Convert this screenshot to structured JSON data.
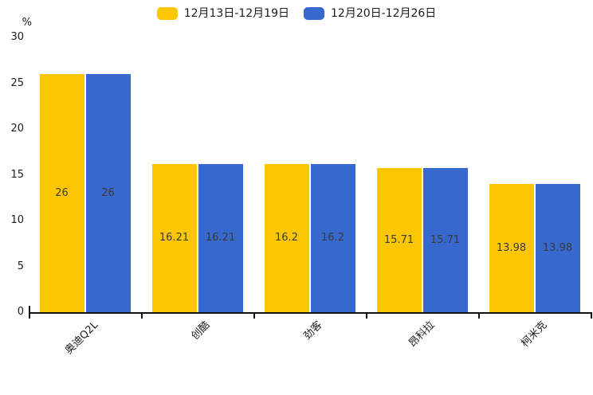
{
  "unit_label": "%",
  "colors": {
    "series_yellow": "#FCC603",
    "series_blue": "#3768CD",
    "axis": "#111111",
    "tick_text": "#1a1a1a",
    "bar_label_text": "#3a3a3a"
  },
  "chart_data": {
    "type": "bar",
    "title": "",
    "xlabel": "",
    "ylabel": "%",
    "categories": [
      "奥迪Q2L",
      "创酷",
      "劲客",
      "昂科拉",
      "柯米克"
    ],
    "series": [
      {
        "name": "12月13日-12月19日",
        "color": "#FCC603",
        "values": [
          26,
          16.21,
          16.2,
          15.71,
          13.98
        ]
      },
      {
        "name": "12月20日-12月26日",
        "color": "#3768CD",
        "values": [
          26,
          16.21,
          16.2,
          15.71,
          13.98
        ]
      }
    ],
    "ylim": [
      0,
      30
    ],
    "yticks": [
      0,
      5,
      10,
      15,
      20,
      25,
      30
    ],
    "grid": false,
    "legend_position": "top",
    "bar_labels": "inside-center"
  }
}
